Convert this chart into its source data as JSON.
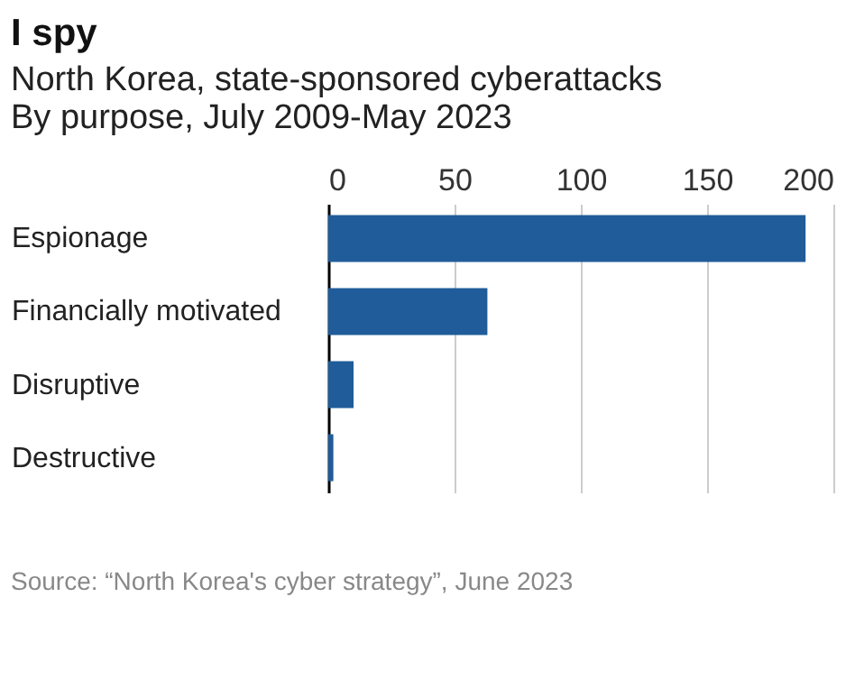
{
  "chart_data": {
    "type": "bar",
    "orientation": "horizontal",
    "title": "I spy",
    "subtitle": "North Korea, state-sponsored cyberattacks\nBy purpose,  July 2009-May 2023",
    "categories": [
      "Espionage",
      "Financially motivated",
      "Disruptive",
      "Destructive"
    ],
    "values": [
      189,
      63,
      10,
      2
    ],
    "color": "#1f5c99",
    "xlim": [
      0,
      200
    ],
    "xticks": [
      0,
      50,
      100,
      150,
      200
    ],
    "grid": "x",
    "annotations": [
      "Source: “North Korea's cyber strategy”, June 2023"
    ]
  }
}
